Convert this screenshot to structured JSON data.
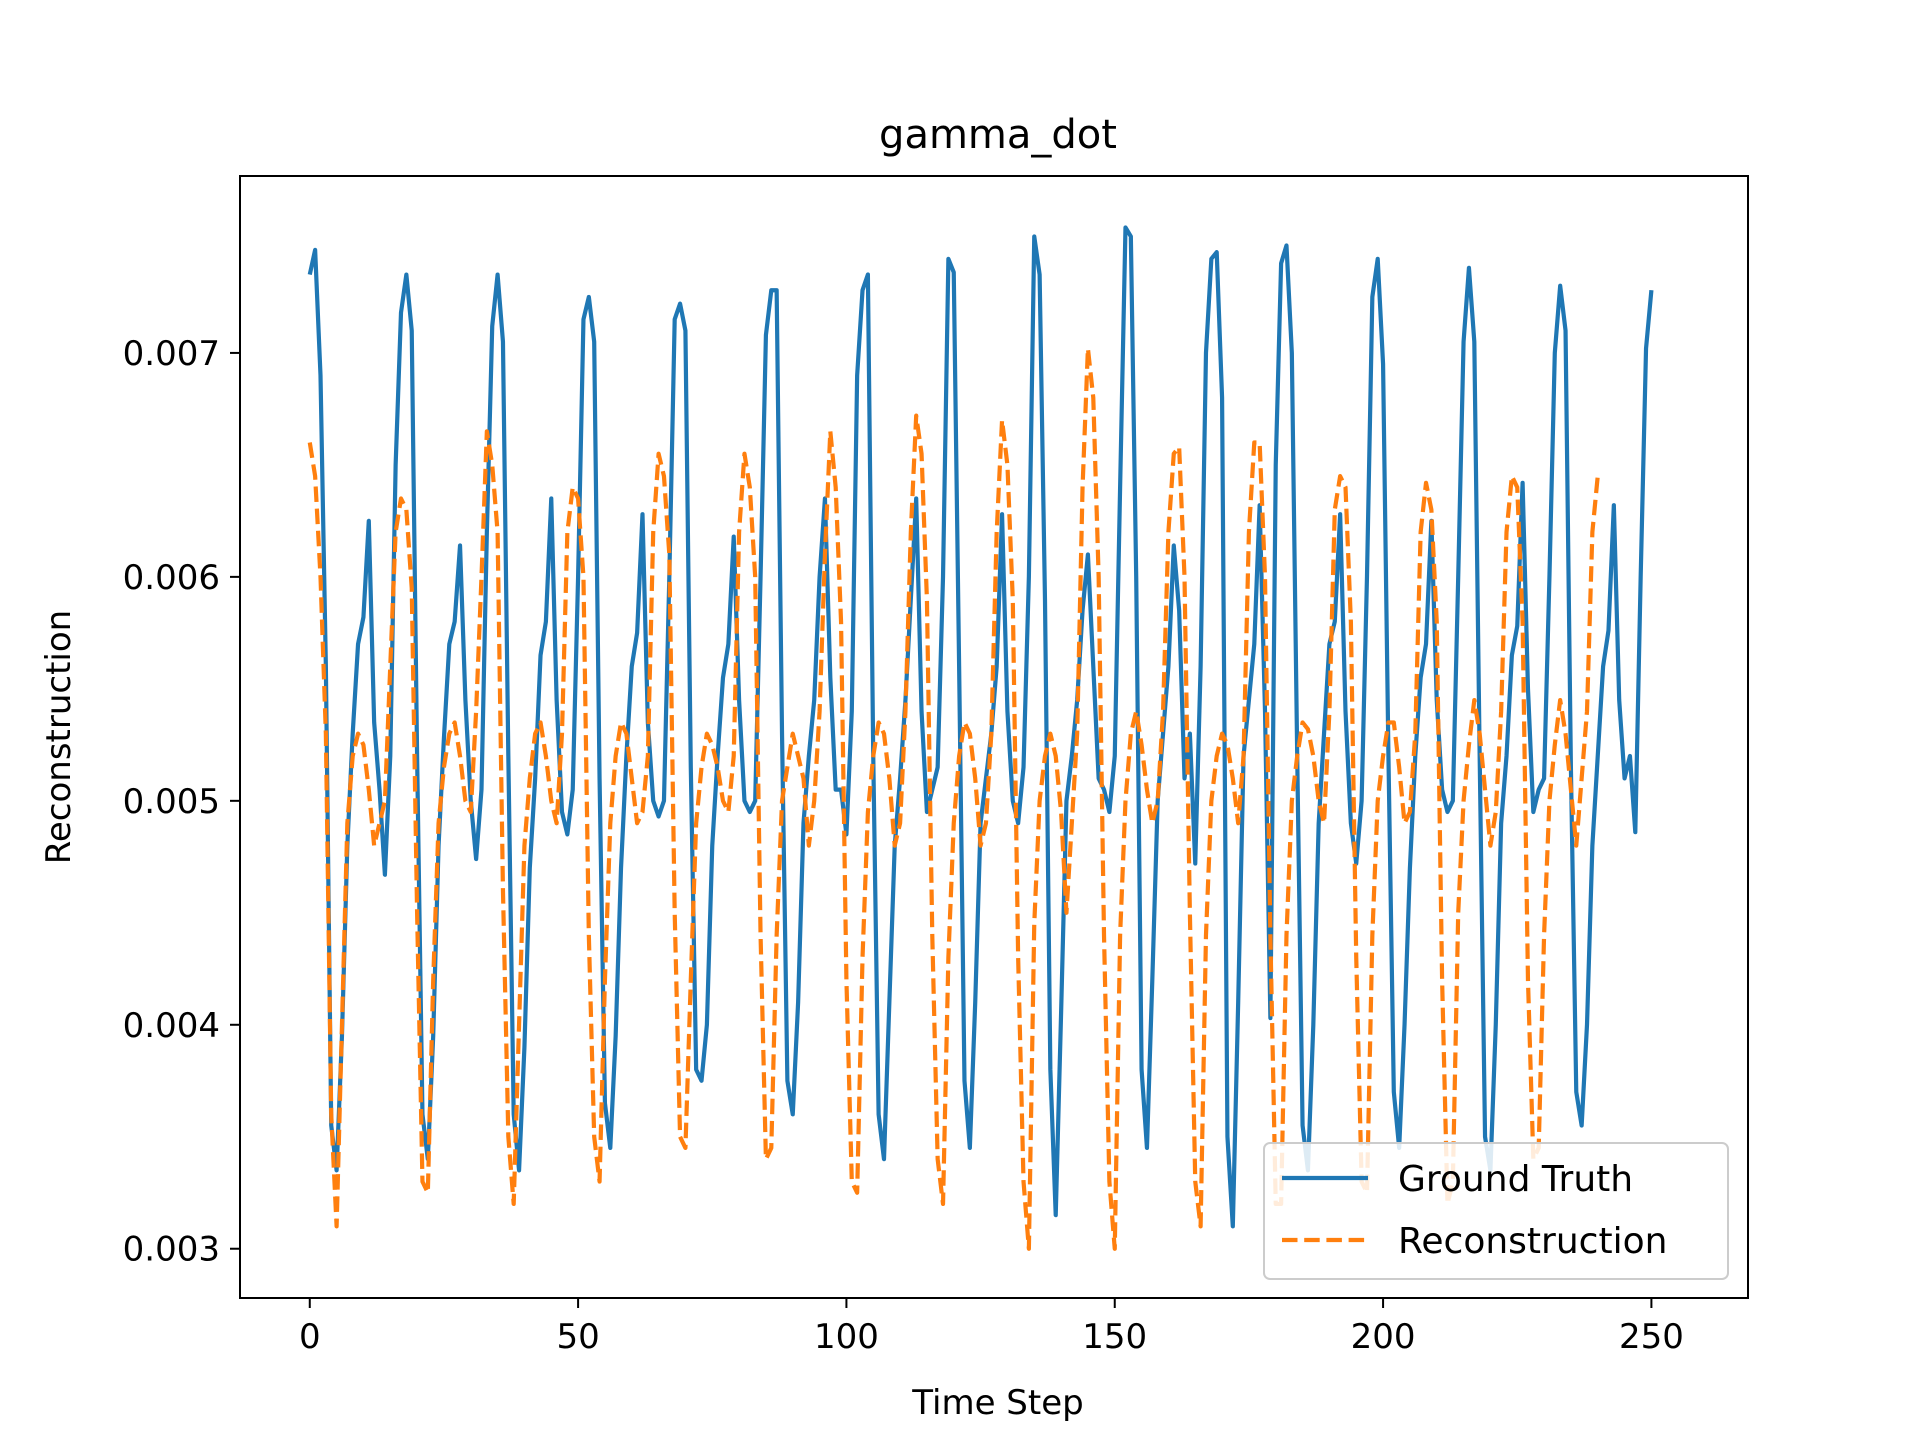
{
  "chart_data": {
    "type": "line",
    "title": "gamma_dot",
    "xlabel": "Time Step",
    "ylabel": "Reconstruction",
    "xlim": [
      -13,
      268
    ],
    "ylim": [
      0.00278,
      0.00779
    ],
    "xticks": [
      0,
      50,
      100,
      150,
      200,
      250
    ],
    "xtick_labels": [
      "0",
      "50",
      "100",
      "150",
      "200",
      "250"
    ],
    "yticks": [
      0.003,
      0.004,
      0.005,
      0.006,
      0.007
    ],
    "ytick_labels": [
      "0.003",
      "0.004",
      "0.005",
      "0.006",
      "0.007"
    ],
    "grid": false,
    "legend_position": "lower right",
    "series": [
      {
        "name": "Ground Truth",
        "color": "#1f77b4",
        "style": "solid",
        "y": [
          0.00735,
          0.00746,
          0.0069,
          0.0056,
          0.00355,
          0.00335,
          0.00395,
          0.0048,
          0.0053,
          0.0057,
          0.00582,
          0.00625,
          0.00535,
          0.00505,
          0.00467,
          0.0052,
          0.0065,
          0.00718,
          0.00735,
          0.0071,
          0.0052,
          0.0036,
          0.0034,
          0.00395,
          0.0048,
          0.00528,
          0.0057,
          0.0058,
          0.00614,
          0.00545,
          0.005,
          0.00474,
          0.00505,
          0.0062,
          0.00712,
          0.00735,
          0.00705,
          0.0052,
          0.0036,
          0.00335,
          0.0039,
          0.0047,
          0.0051,
          0.00565,
          0.0058,
          0.00635,
          0.00545,
          0.00495,
          0.00485,
          0.00505,
          0.006,
          0.00715,
          0.00725,
          0.00705,
          0.0051,
          0.00365,
          0.00345,
          0.00395,
          0.0047,
          0.0052,
          0.0056,
          0.00575,
          0.00628,
          0.00535,
          0.005,
          0.00493,
          0.005,
          0.006,
          0.00715,
          0.00722,
          0.0071,
          0.00515,
          0.0038,
          0.00375,
          0.004,
          0.0048,
          0.0052,
          0.00555,
          0.0057,
          0.00618,
          0.00545,
          0.005,
          0.00495,
          0.005,
          0.006,
          0.00708,
          0.00728,
          0.00728,
          0.0053,
          0.00375,
          0.0036,
          0.0041,
          0.0049,
          0.0052,
          0.00545,
          0.006,
          0.00635,
          0.00555,
          0.00505,
          0.00505,
          0.00485,
          0.0054,
          0.0069,
          0.00728,
          0.00735,
          0.0052,
          0.0036,
          0.0034,
          0.0041,
          0.0048,
          0.0051,
          0.00545,
          0.0059,
          0.00635,
          0.0054,
          0.00495,
          0.00505,
          0.00515,
          0.006,
          0.00742,
          0.00736,
          0.0056,
          0.00375,
          0.00345,
          0.0041,
          0.0049,
          0.0051,
          0.0053,
          0.0056,
          0.00628,
          0.0054,
          0.005,
          0.0049,
          0.00515,
          0.006,
          0.00752,
          0.00735,
          0.0059,
          0.0038,
          0.00315,
          0.00405,
          0.005,
          0.0052,
          0.00545,
          0.00585,
          0.0061,
          0.0056,
          0.0051,
          0.00505,
          0.00495,
          0.0052,
          0.0064,
          0.00756,
          0.00752,
          0.006,
          0.0038,
          0.00345,
          0.0042,
          0.005,
          0.0053,
          0.0056,
          0.00614,
          0.00585,
          0.0051,
          0.0053,
          0.00472,
          0.0056,
          0.007,
          0.00742,
          0.00745,
          0.0068,
          0.0035,
          0.0031,
          0.0041,
          0.0052,
          0.00545,
          0.0057,
          0.00632,
          0.0054,
          0.00403,
          0.0065,
          0.0074,
          0.00748,
          0.007,
          0.0052,
          0.00355,
          0.00335,
          0.004,
          0.0049,
          0.0053,
          0.0057,
          0.0058,
          0.00628,
          0.0054,
          0.0049,
          0.00472,
          0.005,
          0.006,
          0.00725,
          0.00742,
          0.00695,
          0.0052,
          0.0037,
          0.00345,
          0.004,
          0.0047,
          0.0052,
          0.00555,
          0.0057,
          0.00625,
          0.00545,
          0.00505,
          0.00495,
          0.005,
          0.006,
          0.00705,
          0.00738,
          0.00705,
          0.0052,
          0.0035,
          0.00335,
          0.004,
          0.0049,
          0.0052,
          0.00565,
          0.00578,
          0.00642,
          0.0055,
          0.00495,
          0.00505,
          0.0051,
          0.006,
          0.007,
          0.0073,
          0.0071,
          0.00515,
          0.0037,
          0.00355,
          0.004,
          0.0048,
          0.0052,
          0.0056,
          0.00576,
          0.00632,
          0.00545,
          0.0051,
          0.0052,
          0.00486,
          0.006,
          0.00702,
          0.00728
        ]
      },
      {
        "name": "Reconstruction",
        "color": "#ff7f0e",
        "style": "dashed",
        "y": [
          0.0066,
          0.00645,
          0.006,
          0.0053,
          0.0036,
          0.0031,
          0.004,
          0.0049,
          0.0052,
          0.0053,
          0.00525,
          0.00505,
          0.0048,
          0.0049,
          0.005,
          0.0056,
          0.0062,
          0.00635,
          0.0063,
          0.00595,
          0.0045,
          0.0033,
          0.00325,
          0.0042,
          0.0049,
          0.00515,
          0.0053,
          0.00535,
          0.0052,
          0.005,
          0.00495,
          0.0054,
          0.006,
          0.00665,
          0.0065,
          0.0062,
          0.0046,
          0.0035,
          0.0032,
          0.004,
          0.0048,
          0.0051,
          0.0053,
          0.00535,
          0.0052,
          0.005,
          0.0049,
          0.0053,
          0.0062,
          0.0064,
          0.00635,
          0.006,
          0.0044,
          0.0035,
          0.0033,
          0.0042,
          0.0049,
          0.0052,
          0.00535,
          0.0053,
          0.0051,
          0.0049,
          0.00495,
          0.0052,
          0.0062,
          0.00655,
          0.00645,
          0.0061,
          0.0045,
          0.0035,
          0.00345,
          0.0042,
          0.0049,
          0.00515,
          0.0053,
          0.00525,
          0.00515,
          0.005,
          0.00495,
          0.0052,
          0.0062,
          0.00655,
          0.0064,
          0.006,
          0.0044,
          0.0034,
          0.00345,
          0.0044,
          0.005,
          0.00515,
          0.0053,
          0.0052,
          0.0051,
          0.0048,
          0.005,
          0.0054,
          0.0061,
          0.00665,
          0.0064,
          0.0058,
          0.0042,
          0.0033,
          0.00325,
          0.0043,
          0.00495,
          0.0052,
          0.00535,
          0.0053,
          0.0051,
          0.0048,
          0.0049,
          0.0054,
          0.0062,
          0.00672,
          0.00655,
          0.0059,
          0.0044,
          0.0034,
          0.0032,
          0.0043,
          0.0049,
          0.0052,
          0.00535,
          0.0053,
          0.0051,
          0.0048,
          0.0049,
          0.0053,
          0.0062,
          0.0067,
          0.0065,
          0.0059,
          0.0043,
          0.0033,
          0.003,
          0.00445,
          0.005,
          0.0052,
          0.0053,
          0.0052,
          0.00495,
          0.0045,
          0.0049,
          0.0053,
          0.0064,
          0.00702,
          0.0068,
          0.006,
          0.0044,
          0.0033,
          0.003,
          0.0044,
          0.005,
          0.0053,
          0.0054,
          0.00525,
          0.00505,
          0.0049,
          0.005,
          0.0054,
          0.0062,
          0.00655,
          0.00658,
          0.006,
          0.0045,
          0.0033,
          0.0031,
          0.0044,
          0.005,
          0.0052,
          0.0053,
          0.00525,
          0.0051,
          0.0049,
          0.0052,
          0.0062,
          0.0066,
          0.0066,
          0.006,
          0.0044,
          0.0032,
          0.0032,
          0.0044,
          0.005,
          0.0052,
          0.00535,
          0.00532,
          0.0052,
          0.005,
          0.0049,
          0.0054,
          0.0063,
          0.00645,
          0.0064,
          0.0058,
          0.0043,
          0.0033,
          0.00325,
          0.0044,
          0.005,
          0.0052,
          0.00535,
          0.00535,
          0.00515,
          0.0049,
          0.00495,
          0.0053,
          0.0062,
          0.00642,
          0.0063,
          0.0058,
          0.0042,
          0.0032,
          0.0033,
          0.0045,
          0.005,
          0.00525,
          0.00545,
          0.0053,
          0.00505,
          0.0048,
          0.00495,
          0.0054,
          0.0062,
          0.00645,
          0.0064,
          0.0058,
          0.0042,
          0.0034,
          0.00345,
          0.0044,
          0.005,
          0.00525,
          0.00545,
          0.0053,
          0.00505,
          0.0048,
          0.0051,
          0.0054,
          0.0062,
          0.00645
        ]
      }
    ]
  }
}
